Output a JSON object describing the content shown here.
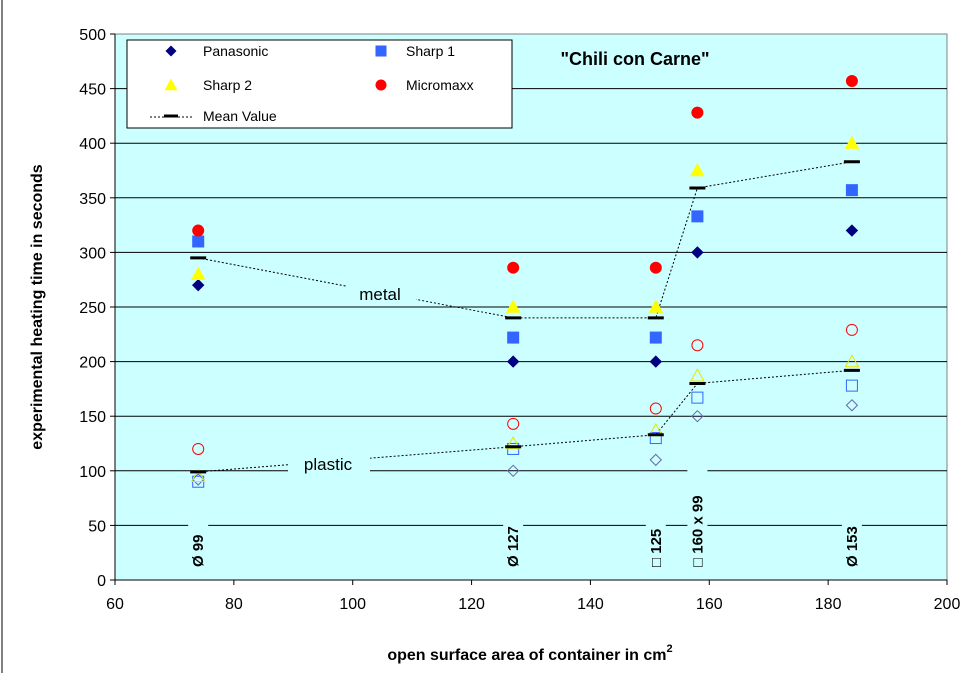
{
  "chart_data": {
    "type": "scatter",
    "title": "\"Chili con Carne\"",
    "xlabel": "open surface area of container in cm",
    "xlabel_sup": "2",
    "ylabel": "experimental heating time in seconds",
    "xlim": [
      60,
      200
    ],
    "ylim": [
      0,
      500
    ],
    "x_ticks": [
      60,
      80,
      100,
      120,
      140,
      160,
      180,
      200
    ],
    "y_ticks": [
      0,
      50,
      100,
      150,
      200,
      250,
      300,
      350,
      400,
      450,
      500
    ],
    "grid": "horizontal",
    "background": "#ccffff",
    "legend_position": "top-left",
    "legend": {
      "panasonic": "Panasonic",
      "sharp1": "Sharp 1",
      "sharp2": "Sharp 2",
      "micromaxx": "Micromaxx",
      "mean": "Mean Value"
    },
    "colors": {
      "panasonic": "#000080",
      "sharp1": "#3366ff",
      "sharp2": "#ffff00",
      "micromaxx": "#ff0000",
      "mean": "#000000"
    },
    "x": [
      74,
      127,
      151,
      158,
      184
    ],
    "groups": [
      {
        "label": "metal",
        "fill": "filled",
        "series": {
          "panasonic": [
            270,
            200,
            200,
            300,
            320
          ],
          "sharp1": [
            310,
            222,
            222,
            333,
            357
          ],
          "sharp2": [
            280,
            250,
            250,
            375,
            400
          ],
          "micromaxx": [
            320,
            286,
            286,
            428,
            457
          ],
          "mean": [
            295,
            240,
            240,
            359,
            383
          ]
        }
      },
      {
        "label": "plastic",
        "fill": "open",
        "series": {
          "panasonic": [
            92,
            100,
            110,
            150,
            160
          ],
          "sharp1": [
            90,
            120,
            130,
            167,
            178
          ],
          "sharp2": [
            95,
            125,
            137,
            187,
            200
          ],
          "micromaxx": [
            120,
            143,
            157,
            215,
            229
          ],
          "mean": [
            99,
            122,
            133,
            180,
            192
          ]
        }
      }
    ],
    "container_labels": [
      "Ø 99",
      "Ø 127",
      "□ 125",
      "□ 160 x 99",
      "Ø 153"
    ]
  }
}
